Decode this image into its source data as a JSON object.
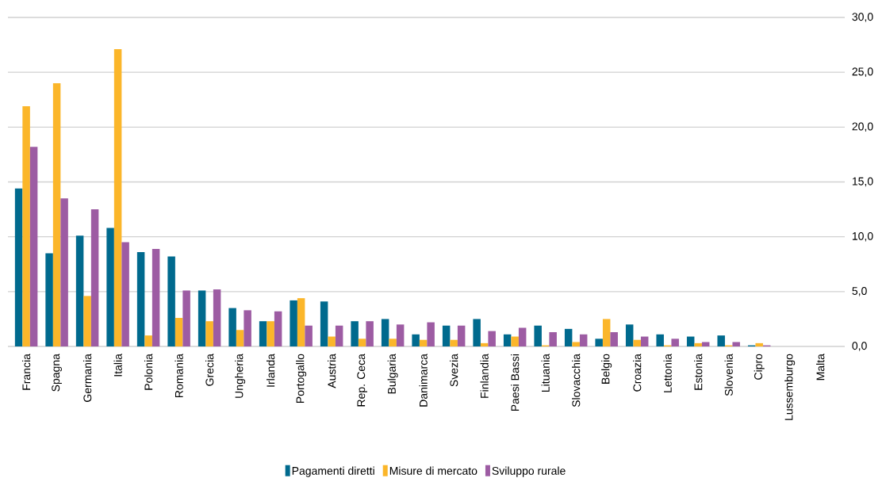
{
  "chart_data": {
    "type": "bar",
    "categories": [
      "Francia",
      "Spagna",
      "Germania",
      "Italia",
      "Polonia",
      "Romania",
      "Grecia",
      "Ungheria",
      "Irlanda",
      "Portogallo",
      "Austria",
      "Rep. Ceca",
      "Bulgaria",
      "Danimarca",
      "Svezia",
      "Finlandia",
      "Paesi Bassi",
      "Lituania",
      "Slovacchia",
      "Belgio",
      "Croazia",
      "Lettonia",
      "Estonia",
      "Slovenia",
      "Cipro",
      "Lussemburgo",
      "Malta"
    ],
    "series": [
      {
        "name": "Pagamenti diretti",
        "color": "#006a8e",
        "values": [
          14.4,
          8.5,
          10.1,
          10.8,
          8.6,
          8.2,
          5.1,
          3.5,
          2.3,
          4.2,
          4.1,
          2.3,
          2.5,
          1.1,
          1.9,
          2.5,
          1.1,
          1.9,
          1.6,
          0.7,
          2.0,
          1.1,
          0.9,
          1.0,
          0.1,
          0.0,
          0.0
        ]
      },
      {
        "name": "Misure di mercato",
        "color": "#fbb62a",
        "values": [
          21.9,
          24.0,
          4.6,
          27.1,
          1.0,
          2.6,
          2.3,
          1.5,
          2.3,
          4.4,
          0.9,
          0.7,
          0.7,
          0.6,
          0.6,
          0.3,
          0.9,
          0.1,
          0.4,
          2.5,
          0.6,
          0.1,
          0.3,
          0.1,
          0.3,
          0.0,
          0.0
        ]
      },
      {
        "name": "Sviluppo rurale",
        "color": "#9d5ca3",
        "values": [
          18.2,
          13.5,
          12.5,
          9.5,
          8.9,
          5.1,
          5.2,
          3.3,
          3.2,
          1.9,
          1.9,
          2.3,
          2.0,
          2.2,
          1.9,
          1.4,
          1.7,
          1.3,
          1.1,
          1.3,
          0.9,
          0.7,
          0.4,
          0.4,
          0.1,
          0.0,
          0.0
        ]
      }
    ],
    "ylim": [
      0,
      30
    ],
    "yticks": [
      {
        "value": 0,
        "label": "0,0"
      },
      {
        "value": 5,
        "label": "5,0"
      },
      {
        "value": 10,
        "label": "10,0"
      },
      {
        "value": 15,
        "label": "15,0"
      },
      {
        "value": 20,
        "label": "20,0"
      },
      {
        "value": 25,
        "label": "25,0"
      },
      {
        "value": 30,
        "label": "30,0"
      }
    ],
    "grid": "y",
    "legend": "bottom"
  }
}
